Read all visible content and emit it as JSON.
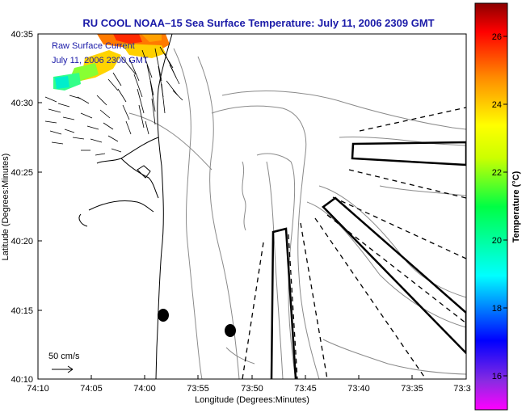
{
  "title": "RU COOL  NOAA–15  Sea Surface Temperature:  July 11, 2006 2309 GMT",
  "annotation": {
    "line1": "Raw Surface Current",
    "line2": "July 11, 2006 2300 GMT"
  },
  "axes": {
    "xlabel": "Longitude (Degrees:Minutes)",
    "ylabel": "Latitude (Degrees:Minutes)",
    "xticks": [
      "74:10",
      "74:05",
      "74:00",
      "73:55",
      "73:50",
      "73:45",
      "73:40",
      "73:35",
      "73:3"
    ],
    "yticks": [
      "40:35",
      "40:30",
      "40:25",
      "40:20",
      "40:15",
      "40:10"
    ]
  },
  "scale_arrow": {
    "label": "50 cm/s"
  },
  "colorbar": {
    "label": "Temperature (°C)",
    "ticks": [
      "26",
      "24",
      "22",
      "20",
      "18",
      "16"
    ],
    "range": [
      15,
      27
    ]
  },
  "colors": {
    "title": "#1a1aa8",
    "contour": "#8a8a8a",
    "coast": "#000000"
  }
}
